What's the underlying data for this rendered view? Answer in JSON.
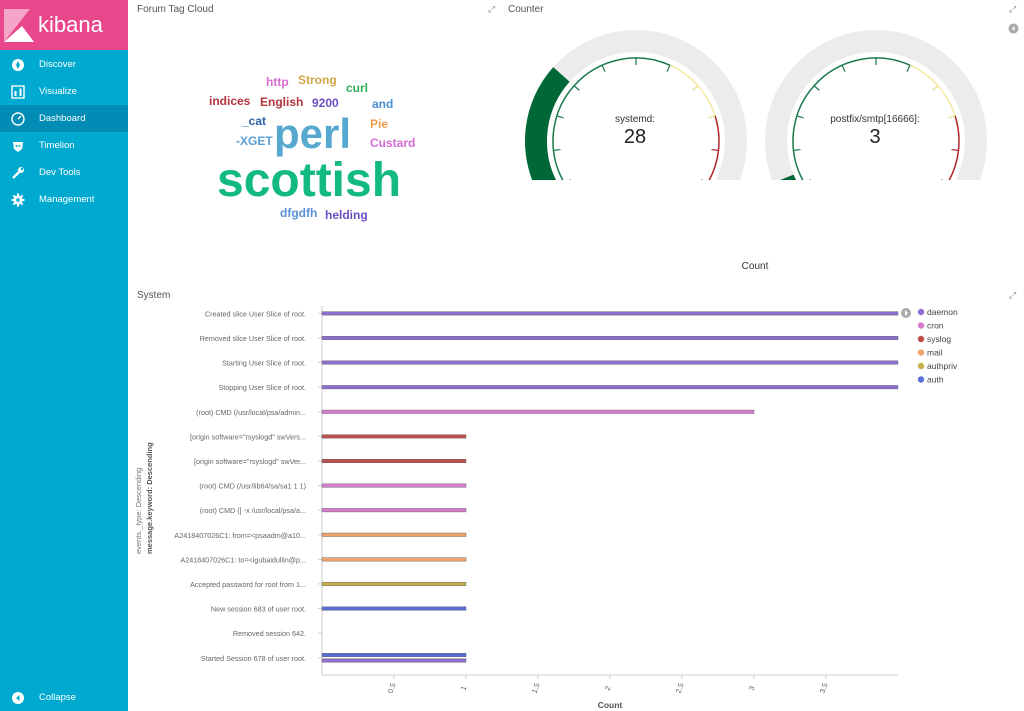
{
  "app": {
    "name": "kibana"
  },
  "sidebar": {
    "items": [
      {
        "label": "Discover",
        "icon": "compass-icon"
      },
      {
        "label": "Visualize",
        "icon": "bar-chart-icon"
      },
      {
        "label": "Dashboard",
        "icon": "dashboard-icon",
        "active": true
      },
      {
        "label": "Timelion",
        "icon": "timelion-icon"
      },
      {
        "label": "Dev Tools",
        "icon": "wrench-icon"
      },
      {
        "label": "Management",
        "icon": "gear-icon"
      }
    ],
    "collapse_label": "Collapse"
  },
  "panels": {
    "tag_cloud": {
      "title": "Forum Tag Cloud",
      "words": [
        "http",
        "Strong",
        "curl",
        "indices",
        "English",
        "9200",
        "and",
        "_cat",
        "perl",
        "Pie",
        "-XGET",
        "Custard",
        "scottish",
        "dfgdfh",
        "helding"
      ]
    },
    "counter": {
      "title": "Counter",
      "gauges": [
        {
          "label": "systemd:",
          "value": 28
        },
        {
          "label": "postfix/smtp[16666]:",
          "value": 3
        }
      ],
      "axis_label": "Count"
    },
    "system": {
      "title": "System"
    }
  },
  "chart_data": {
    "type": "bar",
    "orientation": "horizontal",
    "categories": [
      "Created slice User Slice of root.",
      "Removed slice User Slice of root.",
      "Starting User Slice of root.",
      "Stopping User Slice of root.",
      "(root) CMD (/usr/local/psa/admin...",
      "[origin software=\"rsyslogd\" swVers...",
      "[origin software=\"rsyslogd\" swVer...",
      "(root) CMD (/usr/lib64/sa/sa1 1 1)",
      "(root) CMD ([ -x /usr/local/psa/a...",
      "A2418407026C1: from=<psaadm@a10...",
      "A2418407026C1: to=<igubaidullin@p...",
      "Accepted password for root from 1...",
      "New session 683 of user root.",
      "Removed session 642.",
      "Started Session 678 of user root."
    ],
    "bars": [
      [
        {
          "series": "daemon",
          "value": 4
        }
      ],
      [
        {
          "series": "daemon",
          "value": 4
        }
      ],
      [
        {
          "series": "daemon",
          "value": 4
        }
      ],
      [
        {
          "series": "daemon",
          "value": 4
        }
      ],
      [
        {
          "series": "cron",
          "value": 3
        }
      ],
      [
        {
          "series": "syslog",
          "value": 1
        }
      ],
      [
        {
          "series": "syslog",
          "value": 1
        }
      ],
      [
        {
          "series": "cron",
          "value": 1
        }
      ],
      [
        {
          "series": "cron",
          "value": 1
        }
      ],
      [
        {
          "series": "mail",
          "value": 1
        }
      ],
      [
        {
          "series": "mail",
          "value": 1
        }
      ],
      [
        {
          "series": "authpriv",
          "value": 1
        }
      ],
      [
        {
          "series": "auth",
          "value": 1
        }
      ],
      [],
      [
        {
          "series": "auth",
          "value": 1
        },
        {
          "series": "daemon",
          "value": 1
        }
      ]
    ],
    "series": [
      {
        "name": "daemon",
        "color": "#8e6fd0"
      },
      {
        "name": "cron",
        "color": "#d77ccb"
      },
      {
        "name": "syslog",
        "color": "#c0504d"
      },
      {
        "name": "mail",
        "color": "#f0a46c"
      },
      {
        "name": "authpriv",
        "color": "#c9b04a"
      },
      {
        "name": "auth",
        "color": "#5a6fd6"
      }
    ],
    "xlabel": "Count",
    "ylabel_line1": "events._type: Descending",
    "ylabel_line2": "message.keyword: Descending",
    "xlim": [
      0,
      4
    ],
    "xticks": [
      "0.5",
      "1",
      "1.5",
      "2",
      "2.5",
      "3",
      "3.5"
    ]
  }
}
